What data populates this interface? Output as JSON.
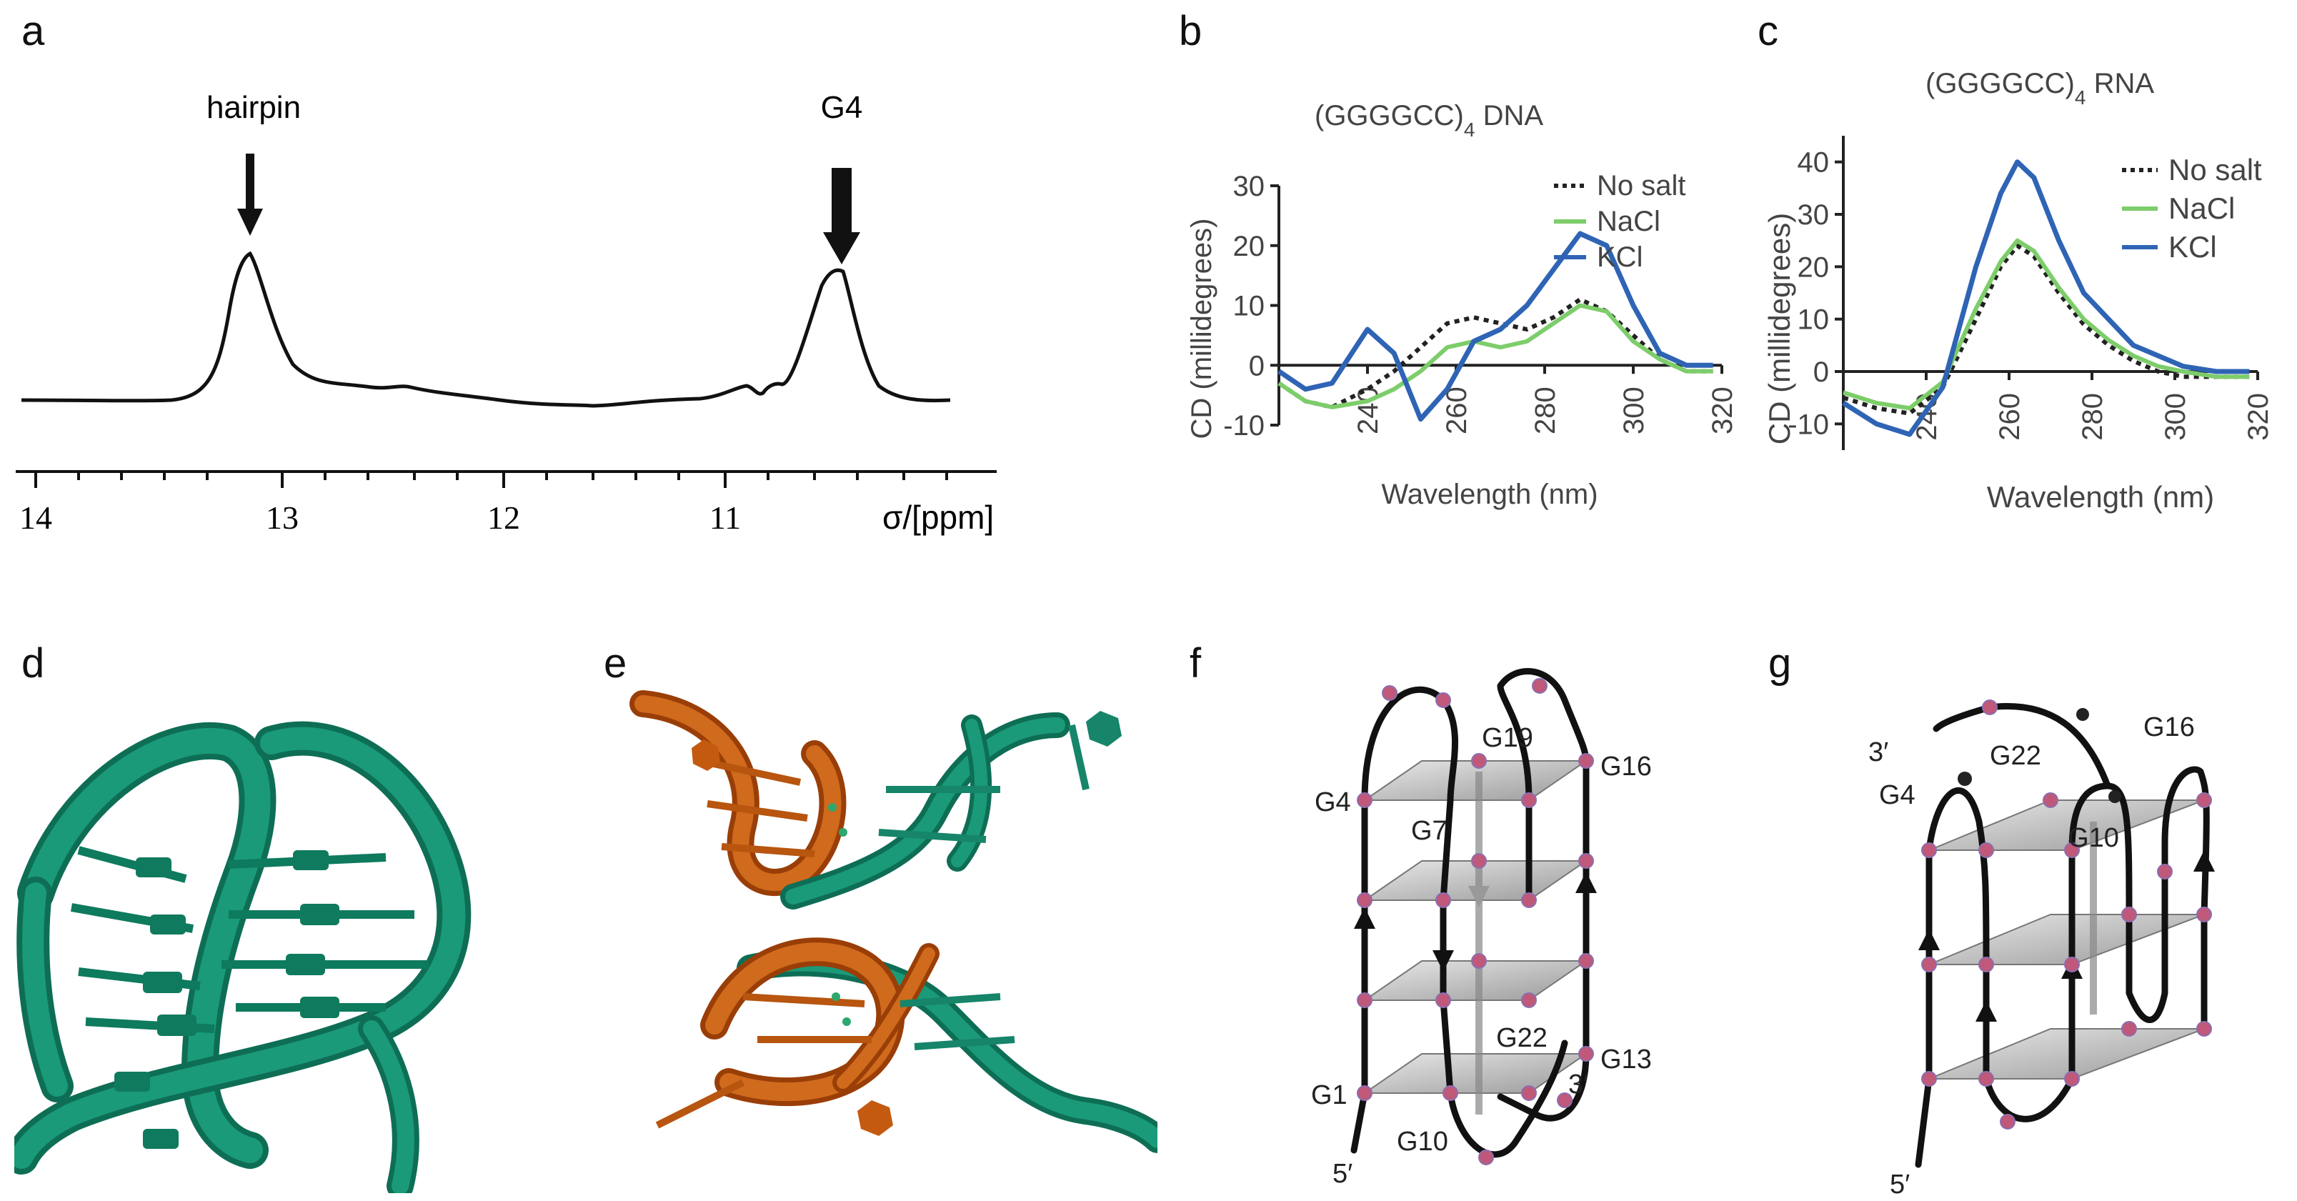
{
  "panels": {
    "a": {
      "label": "a"
    },
    "b": {
      "label": "b"
    },
    "c": {
      "label": "c"
    },
    "d": {
      "label": "d"
    },
    "e": {
      "label": "e"
    },
    "f": {
      "label": "f"
    },
    "g": {
      "label": "g"
    }
  },
  "chart_data": [
    {
      "panel": "a",
      "type": "line",
      "title": "",
      "xlabel": "σ/[ppm]",
      "ylabel": "",
      "xlim": [
        14.2,
        9.7
      ],
      "x_ticks": [
        "14",
        "13",
        "12",
        "11"
      ],
      "annotations": [
        "hairpin",
        "G4"
      ],
      "peaks_ppm": [
        13.15,
        10.4
      ]
    },
    {
      "panel": "b",
      "type": "line",
      "title": "(GGGGCC)",
      "title_sub": "4",
      "title_suffix": " DNA",
      "xlabel": "Wavelength (nm)",
      "ylabel": "CD (millidegrees)",
      "xlim": [
        220,
        320
      ],
      "ylim": [
        -10,
        30
      ],
      "x_ticks": [
        "240",
        "260",
        "280",
        "300",
        "320"
      ],
      "y_ticks": [
        "-10",
        "0",
        "10",
        "20",
        "30"
      ],
      "legend_position": "top-right",
      "x": [
        220,
        226,
        232,
        240,
        246,
        252,
        258,
        264,
        270,
        276,
        282,
        288,
        294,
        300,
        306,
        312,
        318
      ],
      "series": [
        {
          "name": "No salt",
          "color": "#222222",
          "values": [
            -3,
            -6,
            -7,
            -4,
            -1,
            3,
            7,
            8,
            7,
            6,
            8,
            11,
            9,
            5,
            1,
            -1,
            -1
          ]
        },
        {
          "name": "NaCl",
          "color": "#7dcd6b",
          "values": [
            -3,
            -6,
            -7,
            -6,
            -4,
            -1,
            3,
            4,
            3,
            4,
            7,
            10,
            9,
            4,
            1,
            -1,
            -1
          ]
        },
        {
          "name": "KCl",
          "color": "#2f64b5",
          "values": [
            -1,
            -4,
            -3,
            6,
            2,
            -9,
            -4,
            4,
            6,
            10,
            16,
            22,
            20,
            10,
            2,
            0,
            0
          ]
        }
      ]
    },
    {
      "panel": "c",
      "type": "line",
      "title": "(GGGGCC)",
      "title_sub": "4",
      "title_suffix": " RNA",
      "xlabel": "Wavelength (nm)",
      "ylabel": "CD (millidegrees)",
      "xlim": [
        220,
        320
      ],
      "ylim": [
        -15,
        45
      ],
      "x_ticks": [
        "240",
        "260",
        "280",
        "300",
        "320"
      ],
      "y_ticks": [
        "-10",
        "0",
        "10",
        "20",
        "30",
        "40"
      ],
      "legend_position": "top-right",
      "x": [
        220,
        228,
        236,
        244,
        252,
        258,
        262,
        266,
        272,
        278,
        284,
        290,
        296,
        302,
        310,
        318
      ],
      "series": [
        {
          "name": "No salt",
          "color": "#222222",
          "values": [
            -5,
            -7,
            -8,
            -3,
            10,
            20,
            24,
            22,
            15,
            9,
            5,
            2,
            0,
            -1,
            -1,
            -1
          ]
        },
        {
          "name": "NaCl",
          "color": "#7dcd6b",
          "values": [
            -4,
            -6,
            -7,
            -2,
            12,
            21,
            25,
            23,
            16,
            10,
            6,
            3,
            1,
            0,
            -1,
            -1
          ]
        },
        {
          "name": "KCl",
          "color": "#2f64b5",
          "values": [
            -6,
            -10,
            -12,
            -3,
            20,
            34,
            40,
            37,
            25,
            15,
            10,
            5,
            3,
            1,
            0,
            0
          ]
        }
      ]
    }
  ],
  "diagram_f": {
    "labels": {
      "g19": "G19",
      "g16": "G16",
      "g4": "G4",
      "g7": "G7",
      "g22": "G22",
      "g13": "G13",
      "g1": "G1",
      "g10": "G10",
      "three": "3′",
      "five": "5′"
    }
  },
  "diagram_g": {
    "labels": {
      "three": "3′",
      "g22": "G22",
      "g16": "G16",
      "g4": "G4",
      "g10": "G10",
      "five": "5′"
    }
  },
  "colors": {
    "ribbon_green": "#1a8a6e",
    "ribbon_orange": "#c8580f",
    "plane_grey": "#c8c8c8",
    "node_pink": "#c0587a"
  }
}
